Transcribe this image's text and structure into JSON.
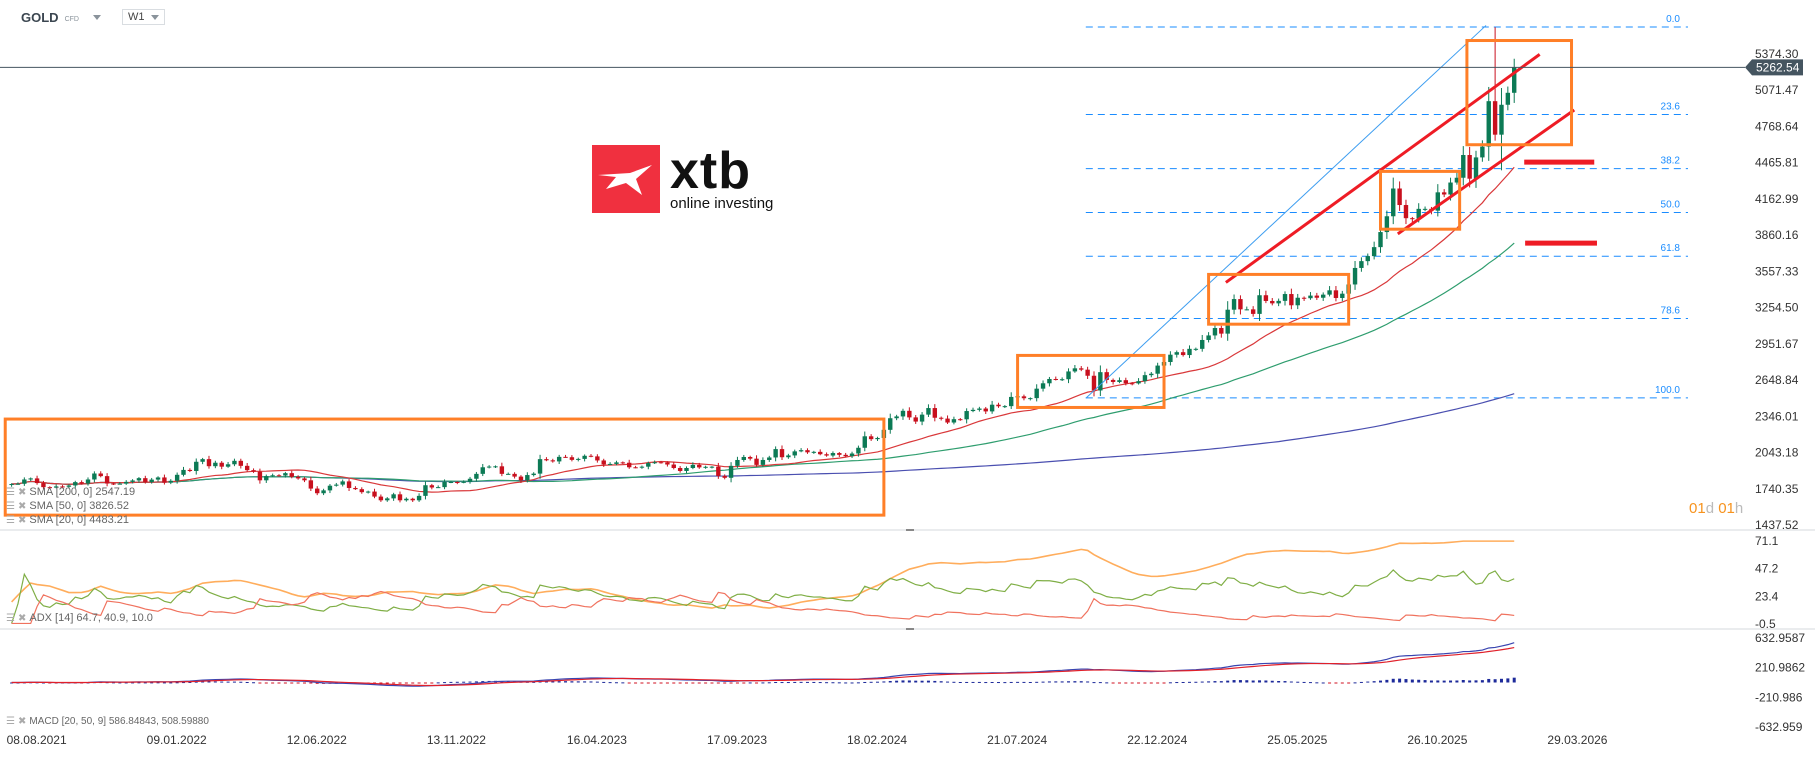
{
  "header": {
    "symbol": "GOLD",
    "instrument_type": "CFD",
    "timeframe": "W1"
  },
  "logo": {
    "brand": "xtb",
    "tagline": "online investing",
    "color": "#f0303f"
  },
  "countdown": {
    "days": "01",
    "d": "d",
    "hours": "01",
    "h": "h"
  },
  "indicators": {
    "sma200": {
      "label": "SMA [200, 0] 2547.19",
      "color": "#4a4fb0"
    },
    "sma50": {
      "label": "SMA [50, 0] 3826.52",
      "color": "#2e9d6e"
    },
    "sma20": {
      "label": "SMA [20, 0] 4483.21",
      "color": "#d9383a"
    },
    "adx": {
      "label": "ADX [14] 64.7, 40.9, 10.0",
      "colors": {
        "adx": "#ffad5c",
        "plus_di": "#7fae45",
        "minus_di": "#f0725e"
      }
    },
    "macd": {
      "label": "MACD [20, 50, 9] 586.84843,   508.59880",
      "colors": {
        "macd": "#3a45b0",
        "signal": "#e0202a"
      }
    }
  },
  "chart_data": {
    "type": "candlestick",
    "interval": "W1",
    "first_week": "08.08.2021",
    "colors": {
      "up": "#0c7a55",
      "down": "#c8101e",
      "fib": "#1a8cff",
      "box": "#ff7f27",
      "trend": "#ee1c25",
      "price_line": "#455560"
    },
    "closes": [
      1780,
      1782,
      1818,
      1827,
      1788,
      1754,
      1750,
      1760,
      1757,
      1768,
      1796,
      1784,
      1818,
      1868,
      1846,
      1784,
      1783,
      1783,
      1798,
      1810,
      1829,
      1797,
      1817,
      1835,
      1791,
      1807,
      1857,
      1898,
      1889,
      1966,
      1988,
      1929,
      1958,
      1925,
      1945,
      1974,
      1932,
      1896,
      1883,
      1811,
      1846,
      1853,
      1851,
      1871,
      1840,
      1827,
      1811,
      1742,
      1703,
      1727,
      1766,
      1775,
      1802,
      1747,
      1737,
      1712,
      1717,
      1675,
      1644,
      1660,
      1694,
      1644,
      1657,
      1644,
      1681,
      1770,
      1751,
      1754,
      1797,
      1797,
      1793,
      1798,
      1824,
      1865,
      1920,
      1926,
      1928,
      1865,
      1865,
      1842,
      1810,
      1855,
      1867,
      1988,
      1978,
      1969,
      2007,
      2004,
      1982,
      1990,
      2016,
      2011,
      1977,
      1944,
      1948,
      1961,
      1958,
      1920,
      1919,
      1925,
      1955,
      1962,
      1960,
      1943,
      1914,
      1889,
      1914,
      1940,
      1919,
      1924,
      1925,
      1848,
      1832,
      1932,
      1981,
      2006,
      1992,
      1940,
      1981,
      2002,
      2072,
      2004,
      2019,
      2053,
      2063,
      2045,
      2049,
      2029,
      2018,
      2039,
      2024,
      2013,
      2035,
      2083,
      2179,
      2155,
      2165,
      2233,
      2330,
      2345,
      2392,
      2337,
      2302,
      2360,
      2415,
      2334,
      2327,
      2294,
      2322,
      2321,
      2390,
      2400,
      2411,
      2387,
      2443,
      2430,
      2431,
      2508,
      2513,
      2497,
      2498,
      2577,
      2622,
      2658,
      2653,
      2656,
      2721,
      2747,
      2736,
      2685,
      2562,
      2715,
      2650,
      2633,
      2648,
      2622,
      2621,
      2640,
      2690,
      2702,
      2770,
      2800,
      2861,
      2882,
      2858,
      2910,
      2910,
      2984,
      3022,
      3084,
      3037,
      3237,
      3326,
      3240,
      3240,
      3202,
      3358,
      3310,
      3290,
      3311,
      3368,
      3274,
      3337,
      3333,
      3355,
      3337,
      3363,
      3399,
      3335,
      3371,
      3448,
      3586,
      3643,
      3685,
      3760,
      3886,
      4018,
      4250,
      4112,
      4002,
      3999,
      4080,
      4080,
      4065,
      4218,
      4200,
      4300,
      4340,
      4530,
      4332,
      4510,
      4600,
      4980,
      4700,
      4950,
      5050,
      5262.54
    ],
    "wicks": [
      {
        "week": "25.01.2026",
        "high": 5598,
        "low": 4650
      },
      {
        "week": "01.02.2026",
        "high": 5090,
        "low": 4402
      }
    ],
    "current_price": "5262.54",
    "y_ticks": [
      "5374.30",
      "5071.47",
      "4768.64",
      "4465.81",
      "4162.99",
      "3860.16",
      "3557.33",
      "3254.50",
      "2951.67",
      "2648.84",
      "2346.01",
      "2043.18",
      "1740.35",
      "1437.52"
    ],
    "adx_ticks": [
      "71.1",
      "47.2",
      "23.4",
      "-0.5"
    ],
    "macd_ticks": [
      "632.9587",
      "210.9862",
      "-210.986",
      "-632.959"
    ],
    "x_ticks": [
      "08.08.2021",
      "09.01.2022",
      "12.06.2022",
      "13.11.2022",
      "16.04.2023",
      "17.09.2023",
      "18.02.2024",
      "21.07.2024",
      "22.12.2024",
      "25.05.2025",
      "26.10.2025",
      "29.03.2026"
    ],
    "fibonacci": {
      "high": 5600,
      "low": 2500,
      "from": "01.11.2024",
      "levels": [
        "0.0",
        "23.6",
        "38.2",
        "50.0",
        "61.8",
        "78.6",
        "100.0"
      ]
    },
    "boxes": [
      {
        "from": "01.08.2021",
        "to": "24.03.2024",
        "top": 2323,
        "bottom": 1520
      },
      {
        "from": "18.08.2024",
        "to": "26.01.2025",
        "top": 2855,
        "bottom": 2420
      },
      {
        "from": "16.03.2025",
        "to": "17.08.2025",
        "top": 3532,
        "bottom": 3116
      },
      {
        "from": "21.09.2025",
        "to": "17.12.2025",
        "top": 4393,
        "bottom": 3910
      },
      {
        "from": "25.12.2025",
        "to": "19.04.2026",
        "top": 5487,
        "bottom": 4616
      }
    ],
    "trendlines": [
      {
        "kind": "channel-upper",
        "from": [
          "04.04.2025",
          3465
        ],
        "to": [
          "15.03.2026",
          5371
        ]
      },
      {
        "kind": "channel-lower",
        "from": [
          "10.10.2025",
          3871
        ],
        "to": [
          "22.04.2026",
          4906
        ]
      },
      {
        "kind": "fib-trend",
        "from": [
          "01.11.2024",
          2497
        ],
        "to": [
          "15.01.2026",
          5613
        ]
      }
    ],
    "levels": [
      {
        "from": "26.02.2026",
        "to": "14.05.2026",
        "price": 4471
      },
      {
        "from": "27.02.2026",
        "to": "17.05.2026",
        "price": 3794
      }
    ]
  }
}
